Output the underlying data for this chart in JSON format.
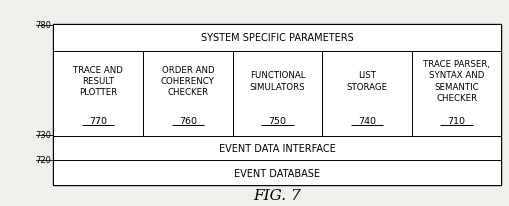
{
  "bg_color": "#f0f0eb",
  "box_color": "#ffffff",
  "border_color": "#000000",
  "text_color": "#000000",
  "title": "FIG. 7",
  "system_label": "SYSTEM SPECIFIC PARAMETERS",
  "system_ref": "780",
  "event_data_label": "EVENT DATA INTERFACE",
  "event_data_ref": "730",
  "event_db_label": "EVENT DATABASE",
  "event_db_ref": "720",
  "modules": [
    {
      "label": "TRACE AND\nRESULT\nPLOTTER",
      "ref": "770"
    },
    {
      "label": "ORDER AND\nCOHERENCY\nCHECKER",
      "ref": "760"
    },
    {
      "label": "FUNCTIONAL\nSIMULATORS",
      "ref": "750"
    },
    {
      "label": "LIST\nSTORAGE",
      "ref": "740"
    },
    {
      "label": "TRACE PARSER,\nSYNTAX AND\nSEMANTIC\nCHECKER",
      "ref": "710"
    }
  ],
  "font_size_large": 7.0,
  "font_size_small": 6.2,
  "font_size_ref": 6.8,
  "font_size_title": 11,
  "font_size_side_ref": 6.0
}
